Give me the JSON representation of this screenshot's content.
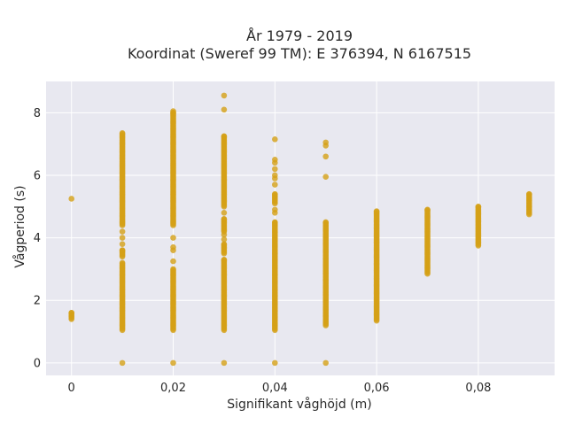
{
  "chart_data": {
    "type": "scatter",
    "title": "År 1979 - 2019",
    "subtitle": "Koordinat (Sweref 99 TM): E 376394, N 6167515",
    "xlabel": "Signifikant våghöjd (m)",
    "ylabel": "Vågperiod (s)",
    "xlim": [
      -0.005,
      0.095
    ],
    "ylim": [
      -0.4,
      9.0
    ],
    "x_ticks": [
      0,
      0.02,
      0.04,
      0.06,
      0.08
    ],
    "x_tick_labels": [
      "0",
      "0,02",
      "0,04",
      "0,06",
      "0,08"
    ],
    "y_ticks": [
      0,
      2,
      4,
      6,
      8
    ],
    "y_tick_labels": [
      "0",
      "2",
      "4",
      "6",
      "8"
    ],
    "grid": true,
    "background": "#e8e8f0",
    "marker_color": "#d4a017",
    "columns": [
      {
        "x": 0.0,
        "y_ranges": [
          [
            1.4,
            1.6
          ]
        ],
        "y_points": [
          5.25
        ]
      },
      {
        "x": 0.01,
        "y_ranges": [
          [
            1.05,
            3.2
          ],
          [
            3.4,
            3.6
          ],
          [
            4.4,
            7.35
          ]
        ],
        "y_points": [
          0,
          3.8,
          4.0,
          4.2
        ]
      },
      {
        "x": 0.02,
        "y_ranges": [
          [
            1.05,
            3.0
          ],
          [
            4.4,
            8.0
          ]
        ],
        "y_points": [
          0,
          3.25,
          3.6,
          3.7,
          4.0,
          8.05
        ]
      },
      {
        "x": 0.03,
        "y_ranges": [
          [
            1.05,
            3.3
          ],
          [
            3.5,
            3.8
          ],
          [
            4.2,
            4.6
          ],
          [
            5.0,
            7.25
          ]
        ],
        "y_points": [
          0,
          3.95,
          4.1,
          4.8,
          8.1,
          8.55
        ]
      },
      {
        "x": 0.04,
        "y_ranges": [
          [
            1.05,
            4.5
          ],
          [
            5.1,
            5.4
          ]
        ],
        "y_points": [
          0,
          4.8,
          4.9,
          5.7,
          5.9,
          6.0,
          6.2,
          6.4,
          6.5,
          7.15
        ]
      },
      {
        "x": 0.05,
        "y_ranges": [
          [
            1.2,
            4.5
          ]
        ],
        "y_points": [
          0,
          5.95,
          6.6,
          6.95,
          7.05
        ]
      },
      {
        "x": 0.06,
        "y_ranges": [
          [
            1.35,
            4.85
          ]
        ],
        "y_points": []
      },
      {
        "x": 0.07,
        "y_ranges": [
          [
            2.85,
            4.9
          ]
        ],
        "y_points": []
      },
      {
        "x": 0.08,
        "y_ranges": [
          [
            3.75,
            5.0
          ]
        ],
        "y_points": []
      },
      {
        "x": 0.09,
        "y_ranges": [
          [
            4.75,
            5.4
          ]
        ],
        "y_points": []
      }
    ]
  }
}
